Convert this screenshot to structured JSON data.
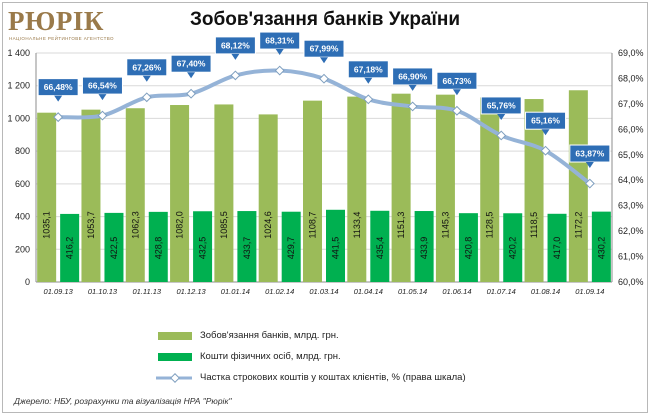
{
  "logo": {
    "name": "РЮРІК",
    "tagline": "НАЦІОНАЛЬНЕ РЕЙТИНГОВЕ АГЕНТСТВО"
  },
  "source": "Джерело: НБУ, розрахунки  та  візуалізація НРА \"Рюрік\"",
  "colors": {
    "liabilities": "#9bbb59",
    "individuals": "#00b050",
    "share_line": "#95b3d7",
    "callout_fill": "#2e6eb5",
    "callout_border": "#ffffff",
    "grid": "#d9d9d9"
  },
  "chart_data": {
    "type": "bar",
    "title": "Зобов'язання банків України",
    "categories": [
      "01.09.13",
      "01.10.13",
      "01.11.13",
      "01.12.13",
      "01.01.14",
      "01.02.14",
      "01.03.14",
      "01.04.14",
      "01.05.14",
      "01.06.14",
      "01.07.14",
      "01.08.14",
      "01.09.14"
    ],
    "series": [
      {
        "name": "Зобов'язання  банків, млрд. грн.",
        "type": "bar",
        "axis": "left",
        "values": [
          1035.1,
          1053.7,
          1062.3,
          1082.0,
          1085.5,
          1024.6,
          1108.7,
          1133.4,
          1151.3,
          1145.3,
          1128.5,
          1118.5,
          1172.2
        ],
        "labels": [
          "1035,1",
          "1053,7",
          "1062,3",
          "1082,0",
          "1085,5",
          "1024,6",
          "1108,7",
          "1133,4",
          "1151,3",
          "1145,3",
          "1128,5",
          "1118,5",
          "1172,2"
        ]
      },
      {
        "name": "Кошти  фізичних осіб, млрд. грн.",
        "type": "bar",
        "axis": "left",
        "values": [
          416.2,
          422.5,
          428.8,
          432.5,
          433.7,
          429.7,
          441.5,
          435.4,
          433.9,
          420.8,
          420.2,
          417.0,
          430.2
        ],
        "labels": [
          "416,2",
          "422,5",
          "428,8",
          "432,5",
          "433,7",
          "429,7",
          "441,5",
          "435,4",
          "433,9",
          "420,8",
          "420,2",
          "417,0",
          "430,2"
        ]
      },
      {
        "name": "Частка строкових коштів у коштах клієнтів, % (права шкала)",
        "type": "line",
        "axis": "right",
        "values": [
          66.48,
          66.54,
          67.26,
          67.4,
          68.12,
          68.31,
          67.99,
          67.18,
          66.9,
          66.73,
          65.76,
          65.16,
          63.87
        ],
        "labels": [
          "66,48%",
          "66,54%",
          "67,26%",
          "67,40%",
          "68,12%",
          "68,31%",
          "67,99%",
          "67,18%",
          "66,90%",
          "66,73%",
          "65,76%",
          "65,16%",
          "63,87%"
        ]
      }
    ],
    "y_left": {
      "min": 0,
      "max": 1400,
      "step": 200,
      "tick_labels": [
        "0",
        "200",
        "400",
        "600",
        "800",
        "1 000",
        "1 200",
        "1 400"
      ]
    },
    "y_right": {
      "min": 60,
      "max": 69,
      "step": 1,
      "tick_labels": [
        "60,0%",
        "61,0%",
        "62,0%",
        "63,0%",
        "64,0%",
        "65,0%",
        "66,0%",
        "67,0%",
        "68,0%",
        "69,0%"
      ]
    },
    "grid": true,
    "legend_position": "bottom"
  }
}
